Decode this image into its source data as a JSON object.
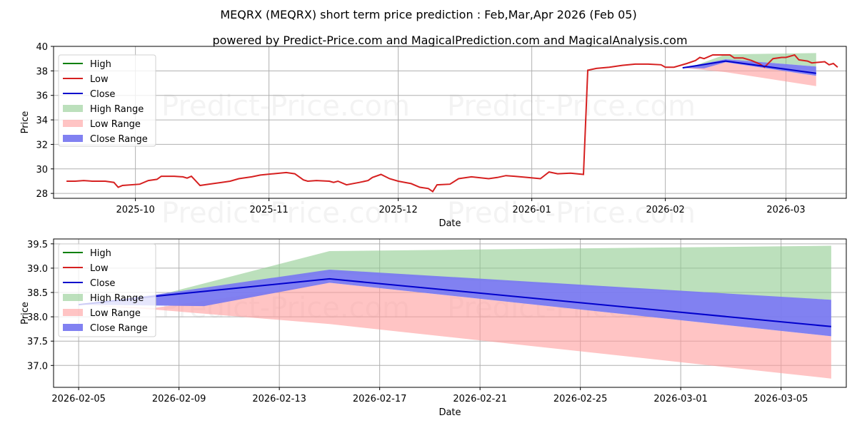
{
  "title": "MEQRX (MEQRX) short term price prediction : Feb,Mar,Apr 2026 (Feb 05)",
  "subtitle": "powered by Predict-Price.com and MagicalPrediction.com and MagicalAnalysis.com",
  "watermark": "Predict-Price.com",
  "colors": {
    "high": "#008000",
    "low": "#d62020",
    "close": "#0000cc",
    "high_range": "#8fcc8f",
    "low_range": "#ff9d9d",
    "close_range": "#7a7af0"
  },
  "chart_data": [
    {
      "type": "line",
      "xlabel": "Date",
      "ylabel": "Price",
      "xlim": [
        "2025-09-12",
        "2026-03-15"
      ],
      "ylim": [
        27.6,
        40.0
      ],
      "x_ticks": [
        {
          "date": "2025-10-01",
          "label": "2025-10"
        },
        {
          "date": "2025-11-01",
          "label": "2025-11"
        },
        {
          "date": "2025-12-01",
          "label": "2025-12"
        },
        {
          "date": "2026-01-01",
          "label": "2026-01"
        },
        {
          "date": "2026-02-01",
          "label": "2026-02"
        },
        {
          "date": "2026-03-01",
          "label": "2026-03"
        }
      ],
      "y_ticks": [
        28,
        30,
        32,
        34,
        36,
        38,
        40
      ],
      "legend": [
        "High",
        "Low",
        "Close",
        "High Range",
        "Low Range",
        "Close Range"
      ],
      "legend_position": "top-left",
      "series": [
        {
          "name": "Low",
          "points": [
            [
              "2025-09-15",
              29.0
            ],
            [
              "2025-09-17",
              29.0
            ],
            [
              "2025-09-19",
              29.05
            ],
            [
              "2025-09-21",
              29.0
            ],
            [
              "2025-09-24",
              29.0
            ],
            [
              "2025-09-26",
              28.9
            ],
            [
              "2025-09-27",
              28.5
            ],
            [
              "2025-09-28",
              28.65
            ],
            [
              "2025-10-02",
              28.75
            ],
            [
              "2025-10-04",
              29.05
            ],
            [
              "2025-10-06",
              29.15
            ],
            [
              "2025-10-07",
              29.4
            ],
            [
              "2025-10-10",
              29.4
            ],
            [
              "2025-10-12",
              29.35
            ],
            [
              "2025-10-13",
              29.25
            ],
            [
              "2025-10-14",
              29.4
            ],
            [
              "2025-10-16",
              28.65
            ],
            [
              "2025-10-18",
              28.75
            ],
            [
              "2025-10-21",
              28.9
            ],
            [
              "2025-10-23",
              29.0
            ],
            [
              "2025-10-25",
              29.2
            ],
            [
              "2025-10-28",
              29.35
            ],
            [
              "2025-10-30",
              29.5
            ],
            [
              "2025-11-02",
              29.6
            ],
            [
              "2025-11-05",
              29.7
            ],
            [
              "2025-11-07",
              29.6
            ],
            [
              "2025-11-09",
              29.1
            ],
            [
              "2025-11-10",
              29.0
            ],
            [
              "2025-11-12",
              29.05
            ],
            [
              "2025-11-15",
              29.0
            ],
            [
              "2025-11-16",
              28.9
            ],
            [
              "2025-11-17",
              29.0
            ],
            [
              "2025-11-19",
              28.7
            ],
            [
              "2025-11-22",
              28.9
            ],
            [
              "2025-11-24",
              29.05
            ],
            [
              "2025-11-25",
              29.3
            ],
            [
              "2025-11-27",
              29.55
            ],
            [
              "2025-11-29",
              29.2
            ],
            [
              "2025-12-01",
              29.0
            ],
            [
              "2025-12-04",
              28.8
            ],
            [
              "2025-12-06",
              28.5
            ],
            [
              "2025-12-08",
              28.4
            ],
            [
              "2025-12-09",
              28.15
            ],
            [
              "2025-12-10",
              28.7
            ],
            [
              "2025-12-13",
              28.75
            ],
            [
              "2025-12-15",
              29.2
            ],
            [
              "2025-12-18",
              29.35
            ],
            [
              "2025-12-22",
              29.2
            ],
            [
              "2025-12-24",
              29.3
            ],
            [
              "2025-12-26",
              29.45
            ],
            [
              "2025-12-28",
              29.4
            ],
            [
              "2025-12-31",
              29.3
            ],
            [
              "2026-01-03",
              29.2
            ],
            [
              "2026-01-05",
              29.75
            ],
            [
              "2026-01-07",
              29.6
            ],
            [
              "2026-01-10",
              29.65
            ],
            [
              "2026-01-13",
              29.55
            ],
            [
              "2026-01-14",
              38.05
            ],
            [
              "2026-01-16",
              38.2
            ],
            [
              "2026-01-19",
              38.3
            ],
            [
              "2026-01-22",
              38.45
            ],
            [
              "2026-01-25",
              38.55
            ],
            [
              "2026-01-28",
              38.55
            ],
            [
              "2026-01-31",
              38.5
            ],
            [
              "2026-02-01",
              38.3
            ],
            [
              "2026-02-03",
              38.3
            ],
            [
              "2026-02-06",
              38.6
            ],
            [
              "2026-02-08",
              38.85
            ],
            [
              "2026-02-09",
              39.1
            ],
            [
              "2026-02-10",
              39.0
            ],
            [
              "2026-02-12",
              39.3
            ],
            [
              "2026-02-16",
              39.3
            ],
            [
              "2026-02-17",
              39.05
            ],
            [
              "2026-02-19",
              39.05
            ],
            [
              "2026-02-21",
              38.85
            ],
            [
              "2026-02-23",
              38.55
            ],
            [
              "2026-02-24",
              38.3
            ],
            [
              "2026-02-26",
              39.0
            ],
            [
              "2026-02-28",
              39.1
            ],
            [
              "2026-03-01",
              39.1
            ],
            [
              "2026-03-03",
              39.3
            ],
            [
              "2026-03-04",
              38.9
            ],
            [
              "2026-03-06",
              38.8
            ],
            [
              "2026-03-07",
              38.65
            ],
            [
              "2026-03-10",
              38.75
            ],
            [
              "2026-03-11",
              38.5
            ],
            [
              "2026-03-12",
              38.6
            ],
            [
              "2026-03-13",
              38.3
            ]
          ]
        },
        {
          "name": "Close",
          "points": [
            [
              "2026-02-05",
              38.25
            ],
            [
              "2026-02-15",
              38.8
            ],
            [
              "2026-03-08",
              37.8
            ]
          ]
        },
        {
          "name": "High Range",
          "upper": [
            [
              "2026-02-05",
              38.3
            ],
            [
              "2026-02-08",
              38.45
            ],
            [
              "2026-02-15",
              39.35
            ],
            [
              "2026-03-08",
              39.45
            ]
          ],
          "lower": [
            [
              "2026-02-05",
              38.25
            ],
            [
              "2026-02-08",
              38.4
            ],
            [
              "2026-02-15",
              38.95
            ],
            [
              "2026-03-08",
              38.35
            ]
          ]
        },
        {
          "name": "Low Range",
          "upper": [
            [
              "2026-02-05",
              38.25
            ],
            [
              "2026-02-15",
              38.7
            ],
            [
              "2026-03-08",
              37.6
            ]
          ],
          "lower": [
            [
              "2026-02-05",
              38.25
            ],
            [
              "2026-02-15",
              37.9
            ],
            [
              "2026-03-08",
              36.75
            ]
          ]
        },
        {
          "name": "Close Range",
          "upper": [
            [
              "2026-02-05",
              38.25
            ],
            [
              "2026-02-15",
              38.95
            ],
            [
              "2026-03-08",
              38.35
            ]
          ],
          "lower": [
            [
              "2026-02-05",
              38.25
            ],
            [
              "2026-02-10",
              38.2
            ],
            [
              "2026-02-15",
              38.7
            ],
            [
              "2026-03-08",
              37.6
            ]
          ]
        }
      ]
    },
    {
      "type": "line",
      "xlabel": "Date",
      "ylabel": "Price",
      "xlim": [
        "2026-02-04",
        "2026-03-07.6"
      ],
      "ylim": [
        36.55,
        39.6
      ],
      "x_ticks": [
        {
          "date": "2026-02-05",
          "label": "2026-02-05"
        },
        {
          "date": "2026-02-09",
          "label": "2026-02-09"
        },
        {
          "date": "2026-02-13",
          "label": "2026-02-13"
        },
        {
          "date": "2026-02-17",
          "label": "2026-02-17"
        },
        {
          "date": "2026-02-21",
          "label": "2026-02-21"
        },
        {
          "date": "2026-02-25",
          "label": "2026-02-25"
        },
        {
          "date": "2026-03-01",
          "label": "2026-03-01"
        },
        {
          "date": "2026-03-05",
          "label": "2026-03-05"
        }
      ],
      "y_ticks": [
        37.0,
        37.5,
        38.0,
        38.5,
        39.0,
        39.5
      ],
      "legend": [
        "High",
        "Low",
        "Close",
        "High Range",
        "Low Range",
        "Close Range"
      ],
      "legend_position": "top-left",
      "series": [
        {
          "name": "Close",
          "points": [
            [
              "2026-02-05",
              38.25
            ],
            [
              "2026-02-08",
              38.42
            ],
            [
              "2026-02-15",
              38.78
            ],
            [
              "2026-03-07",
              37.8
            ]
          ]
        },
        {
          "name": "High Range",
          "upper": [
            [
              "2026-02-05",
              38.25
            ],
            [
              "2026-02-08",
              38.42
            ],
            [
              "2026-02-15",
              39.35
            ],
            [
              "2026-03-07",
              39.46
            ]
          ],
          "lower": [
            [
              "2026-02-05",
              38.25
            ],
            [
              "2026-02-10",
              38.5
            ],
            [
              "2026-02-15",
              38.9
            ],
            [
              "2026-03-07",
              38.35
            ]
          ]
        },
        {
          "name": "Low Range",
          "upper": [
            [
              "2026-02-05",
              38.25
            ],
            [
              "2026-02-08",
              38.18
            ],
            [
              "2026-02-15",
              38.7
            ],
            [
              "2026-03-07",
              37.6
            ]
          ],
          "lower": [
            [
              "2026-02-05",
              38.25
            ],
            [
              "2026-02-08",
              38.15
            ],
            [
              "2026-02-15",
              37.85
            ],
            [
              "2026-03-07",
              36.73
            ]
          ]
        },
        {
          "name": "Close Range",
          "upper": [
            [
              "2026-02-05",
              38.25
            ],
            [
              "2026-02-08",
              38.45
            ],
            [
              "2026-02-15",
              38.97
            ],
            [
              "2026-03-07",
              38.35
            ]
          ],
          "lower": [
            [
              "2026-02-05",
              38.25
            ],
            [
              "2026-02-10",
              38.22
            ],
            [
              "2026-02-15",
              38.7
            ],
            [
              "2026-03-07",
              37.6
            ]
          ]
        }
      ]
    }
  ]
}
